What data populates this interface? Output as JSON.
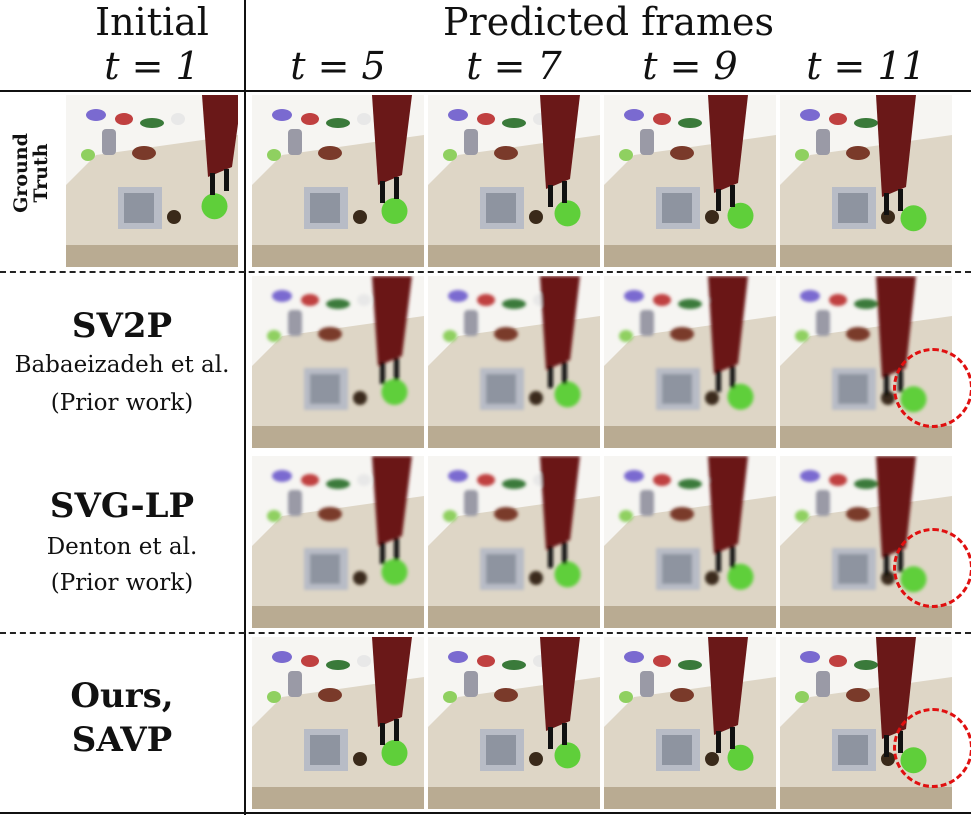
{
  "header": {
    "initial": "Initial",
    "initial_t": "t = 1",
    "predicted": "Predicted frames",
    "times": [
      "t = 5",
      "t = 7",
      "t = 9",
      "t = 11"
    ]
  },
  "rows": [
    {
      "label_lines": [
        "Ground",
        "Truth"
      ]
    },
    {
      "method": "SV2P",
      "author": "Babaeizadeh et al.",
      "note": "(Prior work)"
    },
    {
      "method": "SVG-LP",
      "author": "Denton et al.",
      "note": "(Prior work)"
    },
    {
      "method_lines": [
        "Ours,",
        "SAVP"
      ]
    }
  ],
  "colors": {
    "highlight_circle": "#e01010",
    "table_background": "#ded6c6",
    "robot_arm": "#6a1818",
    "green_ball": "#5fcf3a"
  }
}
